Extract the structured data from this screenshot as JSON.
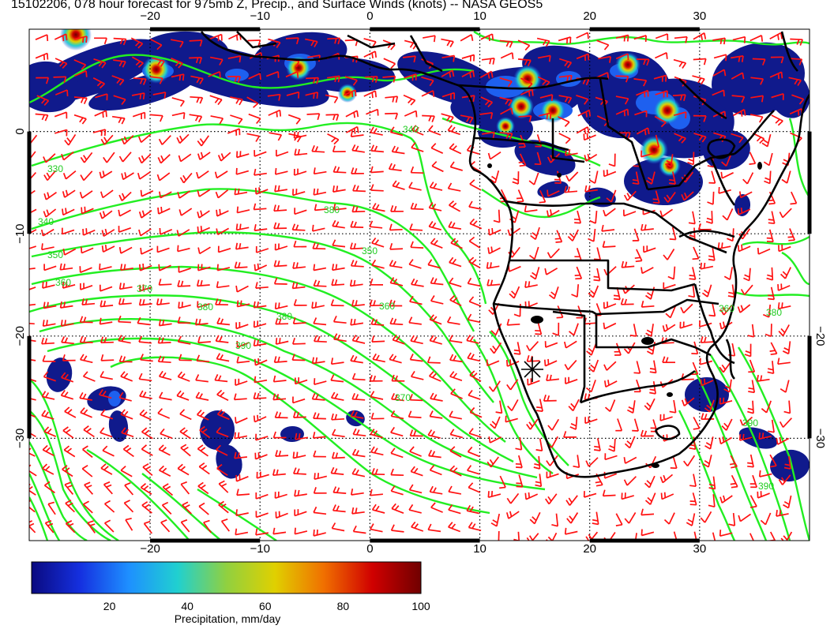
{
  "title": "15102206, 078 hour forecast for 975mb Z, Precip., and Surface Winds (knots) -- NASA GEOS5",
  "map": {
    "lon_range": [
      -31,
      40
    ],
    "lat_range": [
      -40,
      10
    ],
    "lon_ticks": [
      {
        "value": -20,
        "label": "−20"
      },
      {
        "value": -10,
        "label": "−10"
      },
      {
        "value": 0,
        "label": "0"
      },
      {
        "value": 10,
        "label": "10"
      },
      {
        "value": 20,
        "label": "20"
      },
      {
        "value": 30,
        "label": "30"
      }
    ],
    "lat_ticks": [
      {
        "value": 0,
        "label": "0"
      },
      {
        "value": -10,
        "label": "−10"
      },
      {
        "value": -20,
        "label": "−20"
      },
      {
        "value": -30,
        "label": "−30"
      }
    ],
    "right_lat_labels": [
      "−20",
      "−30"
    ],
    "contour_color": "#22ee22",
    "contour_label_color": "#22cc22",
    "barb_color": "#ff1111",
    "land_color": "#000000",
    "contour_labels": [
      "330",
      "340",
      "350",
      "360",
      "370",
      "380",
      "390",
      "340",
      "350",
      "360",
      "370",
      "380",
      "390",
      "380",
      "390",
      "380",
      "360"
    ]
  },
  "colorbar": {
    "range": [
      0,
      100
    ],
    "ticks": [
      "20",
      "40",
      "60",
      "80",
      "100"
    ],
    "label": "Precipitation, mm/day",
    "colors": [
      "#0a0a80",
      "#1530e0",
      "#1e90ff",
      "#20d0d0",
      "#90d040",
      "#e0d000",
      "#f07000",
      "#d00000",
      "#700000"
    ]
  }
}
